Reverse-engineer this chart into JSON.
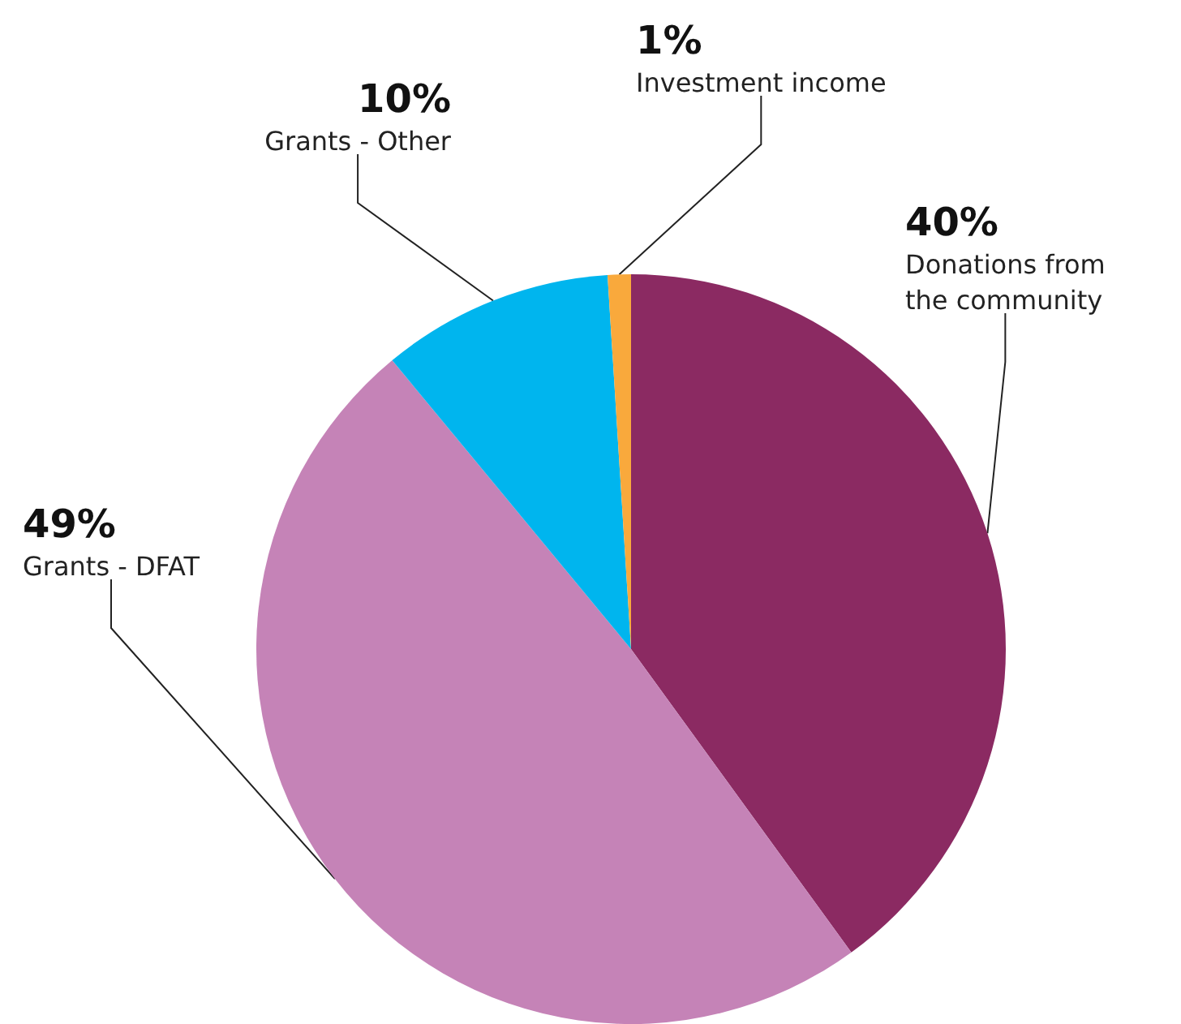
{
  "chart_data": {
    "type": "pie",
    "categories": [
      "Donations from the community",
      "Grants - DFAT",
      "Grants - Other",
      "Investment income"
    ],
    "values": [
      40,
      49,
      10,
      1
    ],
    "colors": [
      "#8b2a62",
      "#c583b7",
      "#00b5ee",
      "#f9a93c"
    ],
    "value_labels": [
      "40%",
      "49%",
      "10%",
      "1%"
    ],
    "legend": false
  }
}
